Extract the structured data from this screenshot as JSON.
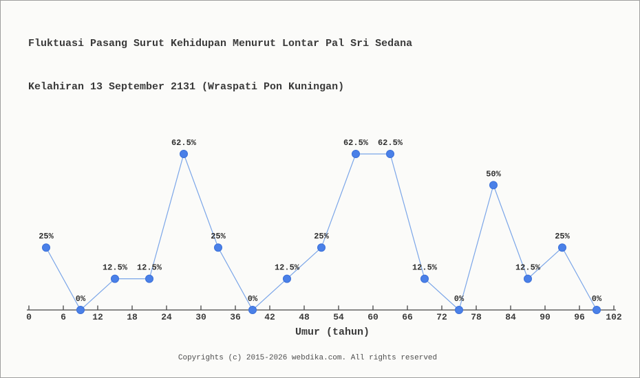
{
  "header": {
    "title_line1": "Fluktuasi Pasang Surut Kehidupan Menurut Lontar Pal Sri Sedana",
    "title_line2": "Kelahiran 13 September 2131 (Wraspati Pon Kuningan)"
  },
  "chart_data": {
    "type": "line",
    "title": "Fluktuasi Pasang Surut Kehidupan Menurut Lontar Pal Sri Sedana Kelahiran 13 September 2131 (Wraspati Pon Kuningan)",
    "x": [
      3,
      9,
      15,
      21,
      27,
      33,
      39,
      45,
      51,
      57,
      63,
      69,
      75,
      81,
      87,
      93,
      99
    ],
    "values": [
      25,
      0,
      12.5,
      12.5,
      62.5,
      25,
      0,
      12.5,
      25,
      62.5,
      62.5,
      12.5,
      0,
      50,
      12.5,
      25,
      0
    ],
    "point_labels": [
      "25%",
      "0%",
      "12.5%",
      "12.5%",
      "62.5%",
      "25%",
      "0%",
      "12.5%",
      "25%",
      "62.5%",
      "62.5%",
      "12.5%",
      "0%",
      "50%",
      "12.5%",
      "25%",
      "0%"
    ],
    "xlabel": "Umur (tahun)",
    "ylabel": "",
    "x_ticks": [
      0,
      6,
      12,
      18,
      24,
      30,
      36,
      42,
      48,
      54,
      60,
      66,
      72,
      78,
      84,
      90,
      96,
      102
    ],
    "xlim": [
      0,
      102
    ],
    "ylim": [
      0,
      100
    ],
    "grid": false,
    "legend": null,
    "colors": {
      "marker": "#4a80e8",
      "marker_edge": "#3a6fd8",
      "line": "#7aa5e8",
      "axis": "#444444"
    }
  },
  "footer": {
    "copyright": "Copyrights (c) 2015-2026 webdika.com. All rights reserved"
  }
}
